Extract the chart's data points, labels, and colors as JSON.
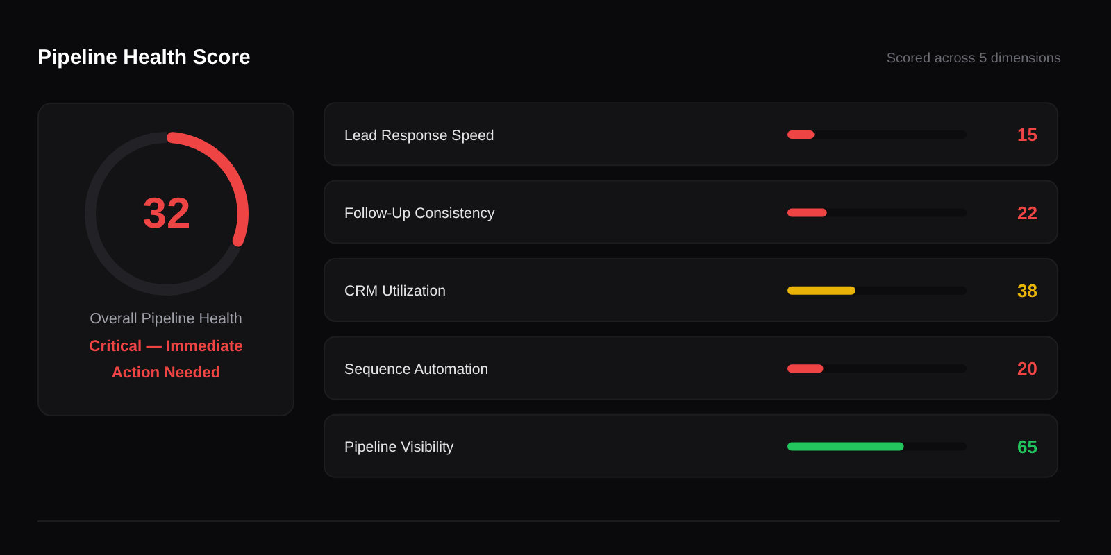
{
  "chart_data": [
    {
      "type": "donut",
      "title": "Pipeline Health Score",
      "categories": [
        null,
        null
      ],
      "values": [
        32,
        68
      ],
      "colors": [
        "#ef4444",
        "#222226"
      ],
      "annotations": [
        "32",
        "Overall Pipeline Health",
        "Critical — Immediate Action Needed"
      ]
    },
    {
      "type": "bar",
      "orientation": "horizontal",
      "subtitle": "Scored across 5 dimensions",
      "categories": [
        "Lead Response Speed",
        "Follow-Up Consistency",
        "CRM Utilization",
        "Sequence Automation",
        "Pipeline Visibility"
      ],
      "values": [
        15,
        22,
        38,
        20,
        65
      ],
      "colors": [
        "#ef4444",
        "#ef4444",
        "#eab308",
        "#ef4444",
        "#22c55e"
      ],
      "xlim": [
        0,
        100
      ],
      "data_labels": true,
      "tick_labels": "y"
    }
  ]
}
